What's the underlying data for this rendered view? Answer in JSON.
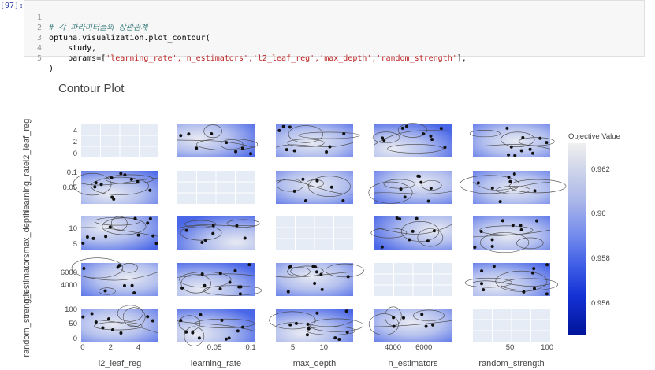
{
  "cell": {
    "prompt": "[97]:",
    "lines": [
      {
        "num": "1",
        "comment": "# 각 파라미터들의 상관관계"
      },
      {
        "num": "2",
        "code": "optuna.visualization.plot_contour("
      },
      {
        "num": "3",
        "code": "    study,"
      },
      {
        "num": "4",
        "pre": "    params=[",
        "strings": "'learning_rate','n_estimators','l2_leaf_reg','max_depth','random_strength'",
        "post": "],"
      },
      {
        "num": "5",
        "code": ")"
      }
    ]
  },
  "plot": {
    "title": "Contour Plot",
    "params": [
      "l2_leaf_reg",
      "learning_rate",
      "max_depth",
      "n_estimators",
      "random_strength"
    ],
    "row_labels": [
      "l2_leaf_reg",
      "learning_rate",
      "max_depth",
      "n_estimators",
      "random_strength"
    ],
    "y_ticks": [
      [
        "4",
        "2",
        "0"
      ],
      [
        "0.1",
        "0.05"
      ],
      [
        "10",
        "5"
      ],
      [
        "6000",
        "4000"
      ],
      [
        "100",
        "50",
        "0"
      ]
    ],
    "x_ticks": [
      [
        "0",
        "2",
        "4"
      ],
      [
        "0.05",
        "0.1"
      ],
      [
        "5",
        "10"
      ],
      [
        "4000",
        "6000"
      ],
      [
        "50",
        "100"
      ]
    ],
    "colorbar": {
      "title": "Objective Value",
      "ticks": [
        "0.962",
        "0.96",
        "0.958",
        "0.956"
      ]
    }
  }
}
